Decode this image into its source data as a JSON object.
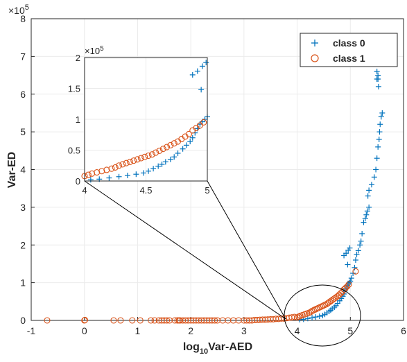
{
  "chart_data": {
    "type": "scatter",
    "xlabel_main": "log",
    "xlabel_sub": "10",
    "xlabel_rest": "Var-AED",
    "ylabel": "Var-ED",
    "y_exponent": "×10",
    "y_exponent_power": "5",
    "xlim": [
      -1,
      6
    ],
    "ylim": [
      0,
      800000
    ],
    "xticks": [
      "-1",
      "0",
      "1",
      "2",
      "3",
      "4",
      "5",
      "6"
    ],
    "yticks": [
      "0",
      "1",
      "2",
      "3",
      "4",
      "5",
      "6",
      "7",
      "8"
    ],
    "grid": true,
    "legend_position": "top-right",
    "series": [
      {
        "name": "class 0",
        "marker": "plus",
        "color": "#0072BD",
        "points": [
          [
            4.05,
            2000
          ],
          [
            4.12,
            3000
          ],
          [
            4.2,
            5000
          ],
          [
            4.28,
            7000
          ],
          [
            4.35,
            9000
          ],
          [
            4.42,
            11000
          ],
          [
            4.48,
            13000
          ],
          [
            4.52,
            16000
          ],
          [
            4.56,
            20000
          ],
          [
            4.6,
            24000
          ],
          [
            4.63,
            27000
          ],
          [
            4.66,
            31000
          ],
          [
            4.7,
            35000
          ],
          [
            4.73,
            39000
          ],
          [
            4.76,
            45000
          ],
          [
            4.8,
            52000
          ],
          [
            4.83,
            58000
          ],
          [
            4.86,
            64000
          ],
          [
            4.88,
            70000
          ],
          [
            4.9,
            78000
          ],
          [
            4.92,
            85000
          ],
          [
            4.94,
            92000
          ],
          [
            4.96,
            96000
          ],
          [
            4.98,
            100000
          ],
          [
            4.88,
            172000
          ],
          [
            4.92,
            178000
          ],
          [
            4.96,
            186000
          ],
          [
            4.99,
            192000
          ],
          [
            4.95,
            148000
          ],
          [
            5.0,
            104000
          ],
          [
            5.02,
            112000
          ],
          [
            5.05,
            125000
          ],
          [
            5.08,
            140000
          ],
          [
            5.1,
            160000
          ],
          [
            5.12,
            175000
          ],
          [
            5.15,
            185000
          ],
          [
            5.18,
            200000
          ],
          [
            5.2,
            210000
          ],
          [
            5.22,
            230000
          ],
          [
            5.25,
            260000
          ],
          [
            5.28,
            270000
          ],
          [
            5.3,
            280000
          ],
          [
            5.32,
            290000
          ],
          [
            5.35,
            300000
          ],
          [
            5.33,
            330000
          ],
          [
            5.35,
            345000
          ],
          [
            5.4,
            360000
          ],
          [
            5.45,
            380000
          ],
          [
            5.48,
            400000
          ],
          [
            5.5,
            430000
          ],
          [
            5.52,
            460000
          ],
          [
            5.54,
            480000
          ],
          [
            5.55,
            500000
          ],
          [
            5.56,
            520000
          ],
          [
            5.58,
            540000
          ],
          [
            5.6,
            550000
          ],
          [
            5.5,
            640000
          ],
          [
            5.5,
            660000
          ],
          [
            5.5,
            680000
          ],
          [
            5.52,
            640000
          ],
          [
            5.52,
            650000
          ],
          [
            5.53,
            620000
          ],
          [
            5.55,
            700000
          ],
          [
            5.56,
            710000
          ],
          [
            5.56,
            720000
          ],
          [
            5.57,
            730000
          ]
        ]
      },
      {
        "name": "class 1",
        "marker": "circle",
        "color": "#D95319",
        "points": [
          [
            -0.7,
            0
          ],
          [
            0.0,
            0
          ],
          [
            0.01,
            1000
          ],
          [
            0.55,
            0
          ],
          [
            0.68,
            0
          ],
          [
            0.9,
            0
          ],
          [
            1.05,
            0
          ],
          [
            1.25,
            0
          ],
          [
            1.32,
            0
          ],
          [
            1.4,
            0
          ],
          [
            1.45,
            0
          ],
          [
            1.5,
            0
          ],
          [
            1.55,
            0
          ],
          [
            1.6,
            0
          ],
          [
            1.7,
            0
          ],
          [
            1.75,
            0
          ],
          [
            1.78,
            0
          ],
          [
            1.8,
            0
          ],
          [
            1.85,
            0
          ],
          [
            1.9,
            0
          ],
          [
            1.95,
            0
          ],
          [
            2.0,
            0
          ],
          [
            2.05,
            0
          ],
          [
            2.1,
            0
          ],
          [
            2.15,
            0
          ],
          [
            2.2,
            0
          ],
          [
            2.25,
            0
          ],
          [
            2.3,
            0
          ],
          [
            2.35,
            0
          ],
          [
            2.4,
            0
          ],
          [
            2.45,
            0
          ],
          [
            2.5,
            0
          ],
          [
            2.6,
            0
          ],
          [
            2.7,
            0
          ],
          [
            2.8,
            0
          ],
          [
            2.9,
            0
          ],
          [
            3.0,
            0
          ],
          [
            3.05,
            0
          ],
          [
            3.1,
            0
          ],
          [
            3.15,
            0
          ],
          [
            3.2,
            1000
          ],
          [
            3.25,
            1000
          ],
          [
            3.3,
            1500
          ],
          [
            3.35,
            2000
          ],
          [
            3.4,
            2000
          ],
          [
            3.45,
            2500
          ],
          [
            3.5,
            3000
          ],
          [
            3.55,
            3000
          ],
          [
            3.6,
            4000
          ],
          [
            3.65,
            4000
          ],
          [
            3.7,
            5000
          ],
          [
            3.75,
            5000
          ],
          [
            3.8,
            6000
          ],
          [
            3.85,
            7000
          ],
          [
            3.9,
            8000
          ],
          [
            3.95,
            9000
          ],
          [
            4.0,
            8000
          ],
          [
            4.03,
            10000
          ],
          [
            4.06,
            12000
          ],
          [
            4.1,
            14000
          ],
          [
            4.14,
            16000
          ],
          [
            4.18,
            18000
          ],
          [
            4.22,
            20000
          ],
          [
            4.25,
            22000
          ],
          [
            4.28,
            25000
          ],
          [
            4.31,
            27000
          ],
          [
            4.34,
            29000
          ],
          [
            4.37,
            31000
          ],
          [
            4.4,
            33000
          ],
          [
            4.43,
            35000
          ],
          [
            4.46,
            37000
          ],
          [
            4.49,
            39000
          ],
          [
            4.52,
            41000
          ],
          [
            4.55,
            43000
          ],
          [
            4.58,
            46000
          ],
          [
            4.61,
            49000
          ],
          [
            4.64,
            52000
          ],
          [
            4.67,
            55000
          ],
          [
            4.7,
            58000
          ],
          [
            4.73,
            61000
          ],
          [
            4.76,
            64000
          ],
          [
            4.79,
            68000
          ],
          [
            4.82,
            72000
          ],
          [
            4.85,
            76000
          ],
          [
            4.88,
            82000
          ],
          [
            4.91,
            86000
          ],
          [
            4.94,
            90000
          ],
          [
            4.97,
            95000
          ],
          [
            5.1,
            130000
          ]
        ]
      }
    ],
    "inset": {
      "xlim": [
        4,
        5
      ],
      "ylim": [
        0,
        200000
      ],
      "xticks": [
        "4",
        "4.5",
        "5"
      ],
      "yticks": [
        "0",
        "0.5",
        "1",
        "1.5",
        "2"
      ],
      "y_exponent": "×10",
      "y_exponent_power": "5"
    }
  }
}
